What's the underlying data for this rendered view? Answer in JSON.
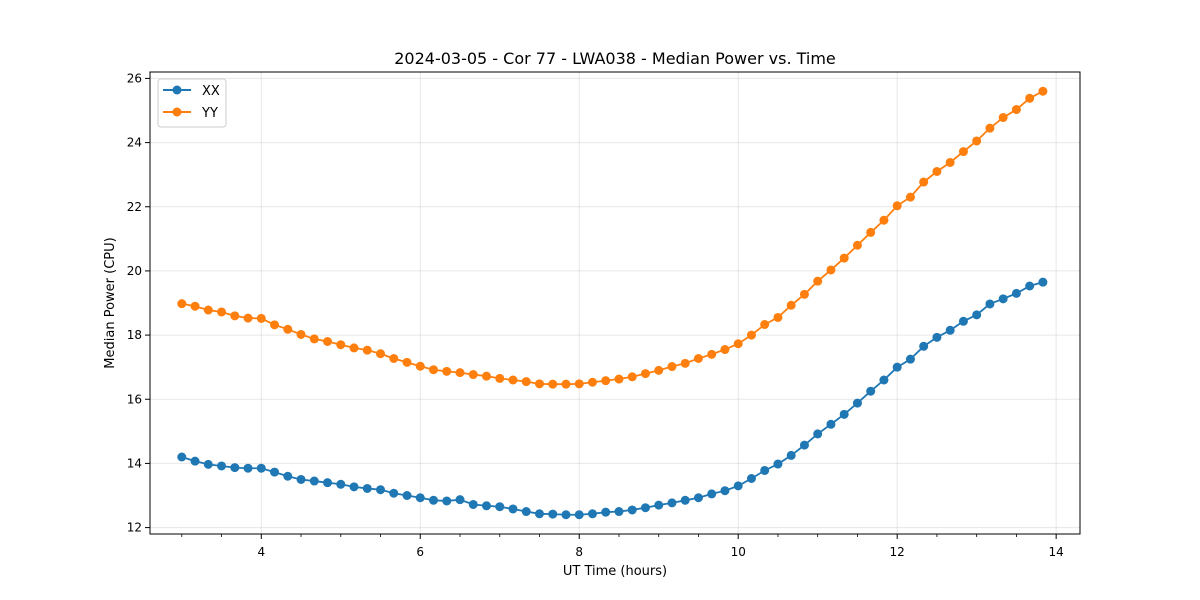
{
  "chart_data": {
    "type": "line",
    "title": "2024-03-05 - Cor 77 - LWA038 - Median Power vs. Time",
    "xlabel": "UT Time (hours)",
    "ylabel": "Median Power (CPU)",
    "xlim": [
      2.6,
      14.3
    ],
    "ylim": [
      11.8,
      26.2
    ],
    "xticks": [
      4,
      6,
      8,
      10,
      12,
      14
    ],
    "xtick_labels": [
      "4",
      "6",
      "8",
      "10",
      "12",
      "14"
    ],
    "yticks": [
      12,
      14,
      16,
      18,
      20,
      22,
      24,
      26
    ],
    "ytick_labels": [
      "12",
      "14",
      "16",
      "18",
      "20",
      "22",
      "24",
      "26"
    ],
    "grid": true,
    "legend_position": "upper-left",
    "x": [
      3.0,
      3.1667,
      3.3333,
      3.5,
      3.6667,
      3.8333,
      4.0,
      4.1667,
      4.3333,
      4.5,
      4.6667,
      4.8333,
      5.0,
      5.1667,
      5.3333,
      5.5,
      5.6667,
      5.8333,
      6.0,
      6.1667,
      6.3333,
      6.5,
      6.6667,
      6.8333,
      7.0,
      7.1667,
      7.3333,
      7.5,
      7.6667,
      7.8333,
      8.0,
      8.1667,
      8.3333,
      8.5,
      8.6667,
      8.8333,
      9.0,
      9.1667,
      9.3333,
      9.5,
      9.6667,
      9.8333,
      10.0,
      10.1667,
      10.3333,
      10.5,
      10.6667,
      10.8333,
      11.0,
      11.1667,
      11.3333,
      11.5,
      11.6667,
      11.8333,
      12.0,
      12.1667,
      12.3333,
      12.5,
      12.6667,
      12.8333,
      13.0,
      13.1667,
      13.3333,
      13.5,
      13.6667,
      13.8333
    ],
    "series": [
      {
        "name": "XX",
        "color": "#1f77b4",
        "values": [
          14.2,
          14.07,
          13.97,
          13.92,
          13.87,
          13.85,
          13.85,
          13.73,
          13.6,
          13.5,
          13.45,
          13.4,
          13.35,
          13.27,
          13.22,
          13.18,
          13.07,
          13.0,
          12.93,
          12.85,
          12.83,
          12.87,
          12.72,
          12.68,
          12.65,
          12.58,
          12.5,
          12.43,
          12.42,
          12.4,
          12.4,
          12.43,
          12.48,
          12.5,
          12.55,
          12.62,
          12.7,
          12.77,
          12.85,
          12.93,
          13.05,
          13.15,
          13.3,
          13.53,
          13.78,
          13.98,
          14.25,
          14.57,
          14.92,
          15.22,
          15.53,
          15.88,
          16.25,
          16.6,
          17.0,
          17.25,
          17.65,
          17.93,
          18.15,
          18.43,
          18.63,
          18.97,
          19.13,
          19.3,
          19.53,
          19.65
        ]
      },
      {
        "name": "YY",
        "color": "#ff7f0e",
        "values": [
          18.98,
          18.9,
          18.78,
          18.72,
          18.6,
          18.53,
          18.52,
          18.32,
          18.18,
          18.02,
          17.88,
          17.8,
          17.7,
          17.6,
          17.53,
          17.42,
          17.27,
          17.15,
          17.03,
          16.92,
          16.87,
          16.83,
          16.77,
          16.72,
          16.65,
          16.6,
          16.55,
          16.48,
          16.47,
          16.47,
          16.48,
          16.53,
          16.58,
          16.63,
          16.7,
          16.8,
          16.9,
          17.02,
          17.12,
          17.27,
          17.4,
          17.55,
          17.73,
          18.0,
          18.33,
          18.55,
          18.93,
          19.27,
          19.68,
          20.03,
          20.4,
          20.8,
          21.2,
          21.58,
          22.03,
          22.3,
          22.77,
          23.1,
          23.38,
          23.72,
          24.05,
          24.45,
          24.78,
          25.03,
          25.38,
          25.6
        ]
      }
    ]
  }
}
